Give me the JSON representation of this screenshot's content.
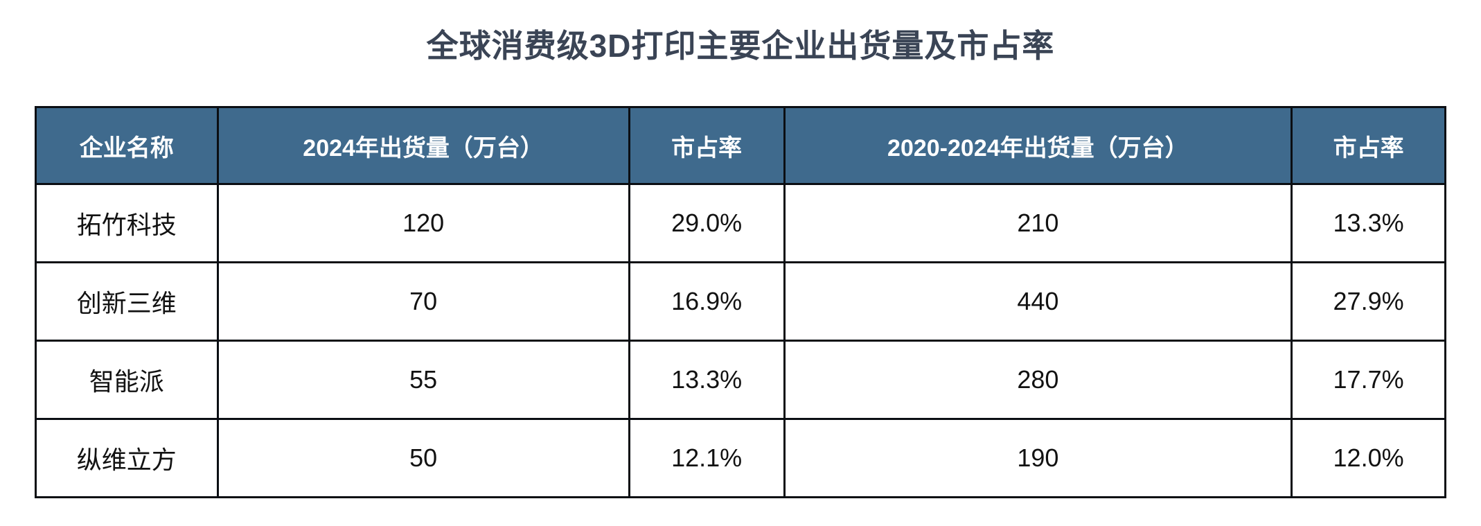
{
  "title": "全球消费级3D打印主要企业出货量及市占率",
  "colors": {
    "header_bg": "#3f6a8d",
    "border": "#0b0e13",
    "title_text": "#3a4455",
    "cell_text": "#121212"
  },
  "table": {
    "headers": [
      "企业名称",
      "2024年出货量（万台）",
      "市占率",
      "2020-2024年出货量（万台）",
      "市占率"
    ],
    "rows": [
      [
        "拓竹科技",
        "120",
        "29.0%",
        "210",
        "13.3%"
      ],
      [
        "创新三维",
        "70",
        "16.9%",
        "440",
        "27.9%"
      ],
      [
        "智能派",
        "55",
        "13.3%",
        "280",
        "17.7%"
      ],
      [
        "纵维立方",
        "50",
        "12.1%",
        "190",
        "12.0%"
      ]
    ]
  },
  "chart_data": {
    "type": "table",
    "title": "全球消费级3D打印主要企业出货量及市占率",
    "columns": [
      "企业名称",
      "2024年出货量（万台）",
      "市占率",
      "2020-2024年出货量（万台）",
      "市占率"
    ],
    "rows": [
      {
        "company": "拓竹科技",
        "shipments_2024_wantai": 120,
        "share_2024": "29.0%",
        "shipments_2020_2024_wantai": 210,
        "share_2020_2024": "13.3%"
      },
      {
        "company": "创新三维",
        "shipments_2024_wantai": 70,
        "share_2024": "16.9%",
        "shipments_2020_2024_wantai": 440,
        "share_2020_2024": "27.9%"
      },
      {
        "company": "智能派",
        "shipments_2024_wantai": 55,
        "share_2024": "13.3%",
        "shipments_2020_2024_wantai": 280,
        "share_2020_2024": "17.7%"
      },
      {
        "company": "纵维立方",
        "shipments_2024_wantai": 50,
        "share_2024": "12.1%",
        "shipments_2020_2024_wantai": 190,
        "share_2020_2024": "12.0%"
      }
    ],
    "legend_position": "none",
    "grid": true
  }
}
